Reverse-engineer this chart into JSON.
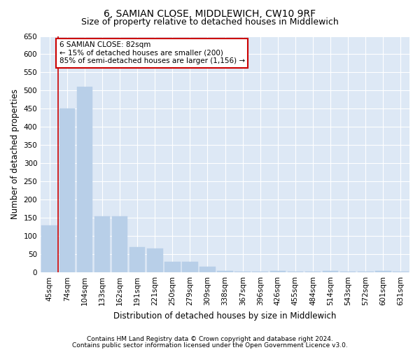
{
  "title": "6, SAMIAN CLOSE, MIDDLEWICH, CW10 9RF",
  "subtitle": "Size of property relative to detached houses in Middlewich",
  "xlabel": "Distribution of detached houses by size in Middlewich",
  "ylabel": "Number of detached properties",
  "footnote1": "Contains HM Land Registry data © Crown copyright and database right 2024.",
  "footnote2": "Contains public sector information licensed under the Open Government Licence v3.0.",
  "categories": [
    "45sqm",
    "74sqm",
    "104sqm",
    "133sqm",
    "162sqm",
    "191sqm",
    "221sqm",
    "250sqm",
    "279sqm",
    "309sqm",
    "338sqm",
    "367sqm",
    "396sqm",
    "426sqm",
    "455sqm",
    "484sqm",
    "514sqm",
    "543sqm",
    "572sqm",
    "601sqm",
    "631sqm"
  ],
  "values": [
    130,
    450,
    510,
    155,
    155,
    70,
    65,
    30,
    30,
    15,
    5,
    2,
    2,
    5,
    2,
    2,
    5,
    2,
    2,
    5,
    2
  ],
  "bar_color": "#b8cfe8",
  "bar_edge_color": "#b8cfe8",
  "background_color": "#dde8f5",
  "grid_color": "#ffffff",
  "ylim": [
    0,
    650
  ],
  "yticks": [
    0,
    50,
    100,
    150,
    200,
    250,
    300,
    350,
    400,
    450,
    500,
    550,
    600,
    650
  ],
  "red_line_x": 0.5,
  "annotation_text": "6 SAMIAN CLOSE: 82sqm\n← 15% of detached houses are smaller (200)\n85% of semi-detached houses are larger (1,156) →",
  "annotation_box_color": "#ffffff",
  "annotation_border_color": "#cc0000",
  "title_fontsize": 10,
  "subtitle_fontsize": 9,
  "axis_fontsize": 8.5,
  "tick_fontsize": 7.5,
  "annotation_fontsize": 7.5,
  "footnote_fontsize": 6.5
}
